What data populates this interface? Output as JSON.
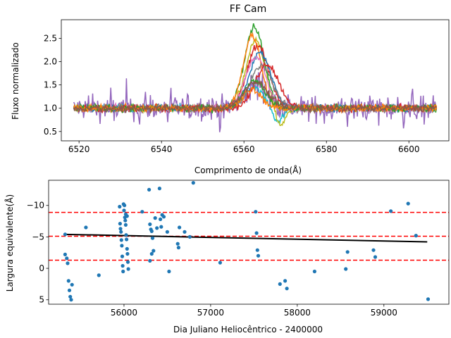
{
  "chart_data": [
    {
      "type": "line",
      "title": "FF Cam",
      "xlabel": "Comprimento de onda(Å)",
      "ylabel": "Fluxo normalizado",
      "xlim": [
        6515.7,
        6609.7
      ],
      "ylim": [
        0.3,
        2.9
      ],
      "xticks": [
        6520,
        6540,
        6560,
        6580,
        6600
      ],
      "yticks": [
        0.5,
        1.0,
        1.5,
        2.0,
        2.5
      ],
      "x_range_data": [
        6518.7,
        6606.7
      ],
      "series": [
        {
          "color": "#9467bd",
          "baseline": 1.0,
          "noise": 0.22,
          "peak": 1.55,
          "center": 6563.2,
          "width": 2.6,
          "absorb": 0.0
        },
        {
          "color": "#17becf",
          "baseline": 1.0,
          "noise": 0.06,
          "peak": 1.45,
          "center": 6562.3,
          "width": 2.4,
          "absorb": 0.3
        },
        {
          "color": "#bcbd22",
          "baseline": 1.0,
          "noise": 0.06,
          "peak": 2.45,
          "center": 6562.8,
          "width": 2.3,
          "absorb": 0.4
        },
        {
          "color": "#2ca02c",
          "baseline": 1.0,
          "noise": 0.06,
          "peak": 2.75,
          "center": 6562.5,
          "width": 2.4,
          "absorb": 0.0
        },
        {
          "color": "#d62728",
          "baseline": 1.0,
          "noise": 0.06,
          "peak": 2.35,
          "center": 6563.4,
          "width": 2.6,
          "absorb": 0.0
        },
        {
          "color": "#ff7f0e",
          "baseline": 1.0,
          "noise": 0.06,
          "peak": 2.55,
          "center": 6562.0,
          "width": 2.2,
          "absorb": 0.0
        },
        {
          "color": "#1f77b4",
          "baseline": 1.0,
          "noise": 0.06,
          "peak": 2.2,
          "center": 6563.9,
          "width": 2.6,
          "absorb": 0.0
        },
        {
          "color": "#e377c2",
          "baseline": 1.0,
          "noise": 0.06,
          "peak": 2.1,
          "center": 6562.9,
          "width": 2.5,
          "absorb": 0.0
        },
        {
          "color": "#7f7f7f",
          "baseline": 1.0,
          "noise": 0.06,
          "peak": 1.9,
          "center": 6564.2,
          "width": 2.7,
          "absorb": 0.0
        },
        {
          "color": "#d62728",
          "baseline": 1.0,
          "noise": 0.06,
          "peak": 1.95,
          "center": 6565.6,
          "width": 2.8,
          "absorb": 0.0
        },
        {
          "color": "#2ca02c",
          "baseline": 1.0,
          "noise": 0.06,
          "peak": 1.6,
          "center": 6562.6,
          "width": 2.5,
          "absorb": 0.0
        },
        {
          "color": "#ff7f0e",
          "baseline": 1.0,
          "noise": 0.06,
          "peak": 1.4,
          "center": 6561.8,
          "width": 2.3,
          "absorb": 0.0
        },
        {
          "color": "#8c564b",
          "baseline": 1.0,
          "noise": 0.07,
          "peak": 1.55,
          "center": 6563.0,
          "width": 3.0,
          "absorb": 0.0
        }
      ]
    },
    {
      "type": "scatter",
      "title": "",
      "xlabel": "Dia Juliano Heliocêntrico - 2400000",
      "ylabel": "Largura equivalente(Å)",
      "xlim": [
        55130,
        59750
      ],
      "ylim": [
        5.7,
        -14.0
      ],
      "y_inverted": true,
      "xticks": [
        56000,
        57000,
        58000,
        59000
      ],
      "yticks": [
        -10,
        -5,
        0,
        5
      ],
      "hlines": [
        -8.9,
        -5.1,
        -1.3
      ],
      "hline_color": "#ff0000",
      "trend": {
        "x": [
          55320,
          59500
        ],
        "y": [
          -5.4,
          -4.2
        ],
        "color": "#000000"
      },
      "point_color": "#1f77b4",
      "points": [
        [
          55320,
          -5.4
        ],
        [
          55320,
          -2.2
        ],
        [
          55340,
          -1.6
        ],
        [
          55350,
          -0.8
        ],
        [
          55360,
          2.0
        ],
        [
          55370,
          3.5
        ],
        [
          55380,
          4.5
        ],
        [
          55390,
          5.0
        ],
        [
          55400,
          2.6
        ],
        [
          55560,
          -6.5
        ],
        [
          55710,
          1.1
        ],
        [
          55950,
          -9.8
        ],
        [
          55955,
          -7.1
        ],
        [
          55960,
          -6.3
        ],
        [
          55965,
          -5.8
        ],
        [
          55970,
          -4.5
        ],
        [
          55975,
          -3.6
        ],
        [
          55980,
          -1.9
        ],
        [
          55985,
          -0.4
        ],
        [
          55990,
          0.5
        ],
        [
          56000,
          -9.2
        ],
        [
          56010,
          -8.1
        ],
        [
          56015,
          -7.6
        ],
        [
          56020,
          -6.9
        ],
        [
          56025,
          -5.3
        ],
        [
          56030,
          -4.6
        ],
        [
          56035,
          -3.1
        ],
        [
          56040,
          -2.3
        ],
        [
          56045,
          -1.0
        ],
        [
          56050,
          0.1
        ],
        [
          55995,
          -10.2
        ],
        [
          56005,
          -10.0
        ],
        [
          56020,
          -8.6
        ],
        [
          56035,
          -8.3
        ],
        [
          56210,
          -9.0
        ],
        [
          56290,
          -12.5
        ],
        [
          56300,
          -7.0
        ],
        [
          56310,
          -6.2
        ],
        [
          56320,
          -5.9
        ],
        [
          56330,
          -4.8
        ],
        [
          56340,
          -2.8
        ],
        [
          56300,
          -1.2
        ],
        [
          56320,
          -2.3
        ],
        [
          56360,
          -8.0
        ],
        [
          56380,
          -6.4
        ],
        [
          56410,
          -12.7
        ],
        [
          56420,
          -7.8
        ],
        [
          56430,
          -6.6
        ],
        [
          56440,
          -8.5
        ],
        [
          56460,
          -8.2
        ],
        [
          56500,
          -5.8
        ],
        [
          56520,
          0.5
        ],
        [
          56620,
          -3.9
        ],
        [
          56630,
          -3.3
        ],
        [
          56640,
          -6.5
        ],
        [
          56700,
          -5.8
        ],
        [
          56760,
          -5.0
        ],
        [
          56800,
          -13.6
        ],
        [
          57110,
          -0.9
        ],
        [
          57520,
          -9.0
        ],
        [
          57530,
          -5.6
        ],
        [
          57540,
          -2.9
        ],
        [
          57550,
          -2.0
        ],
        [
          57800,
          2.5
        ],
        [
          57860,
          2.0
        ],
        [
          57880,
          3.2
        ],
        [
          58200,
          0.5
        ],
        [
          58560,
          0.1
        ],
        [
          58580,
          -2.6
        ],
        [
          58880,
          -2.9
        ],
        [
          58900,
          -1.8
        ],
        [
          59080,
          -9.1
        ],
        [
          59280,
          -10.3
        ],
        [
          59370,
          -5.2
        ],
        [
          59510,
          4.9
        ]
      ]
    }
  ]
}
